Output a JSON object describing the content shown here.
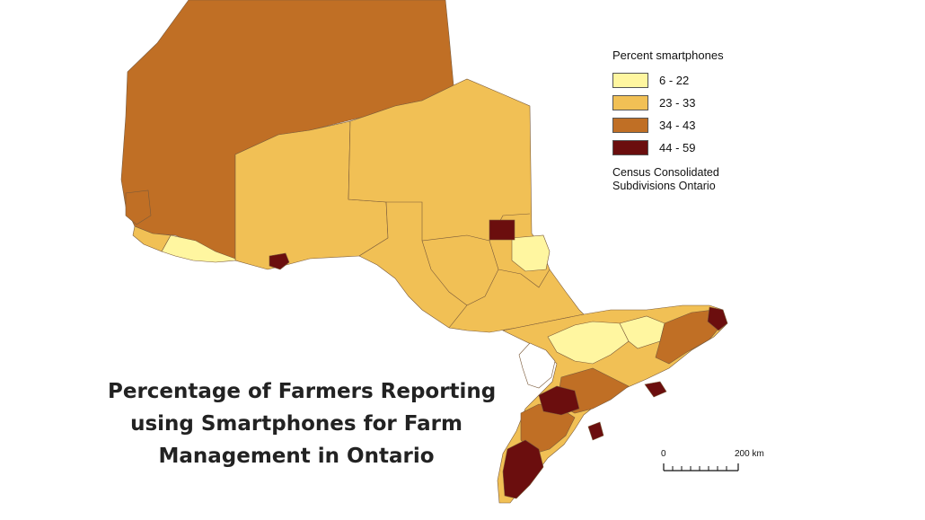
{
  "legend": {
    "title": "Percent smartphones",
    "classes": [
      {
        "label": "6 - 22",
        "color": "#fff6a0"
      },
      {
        "label": "23 - 33",
        "color": "#f1c055"
      },
      {
        "label": "34 - 43",
        "color": "#c06f25"
      },
      {
        "label": "44 - 59",
        "color": "#6b0e0e"
      }
    ],
    "source_line1": "Census Consolidated",
    "source_line2": "Subdivisions Ontario"
  },
  "title": {
    "line1": "Percentage of Farmers Reporting",
    "line2": "using Smartphones for Farm",
    "line3": "Management in Ontario"
  },
  "scale_bar": {
    "start_label": "0",
    "end_label": "200 km"
  },
  "colors": {
    "class1": "#fff6a0",
    "class2": "#f1c055",
    "class3": "#c06f25",
    "class4": "#6b0e0e",
    "boundary": "#7a5a3a"
  }
}
